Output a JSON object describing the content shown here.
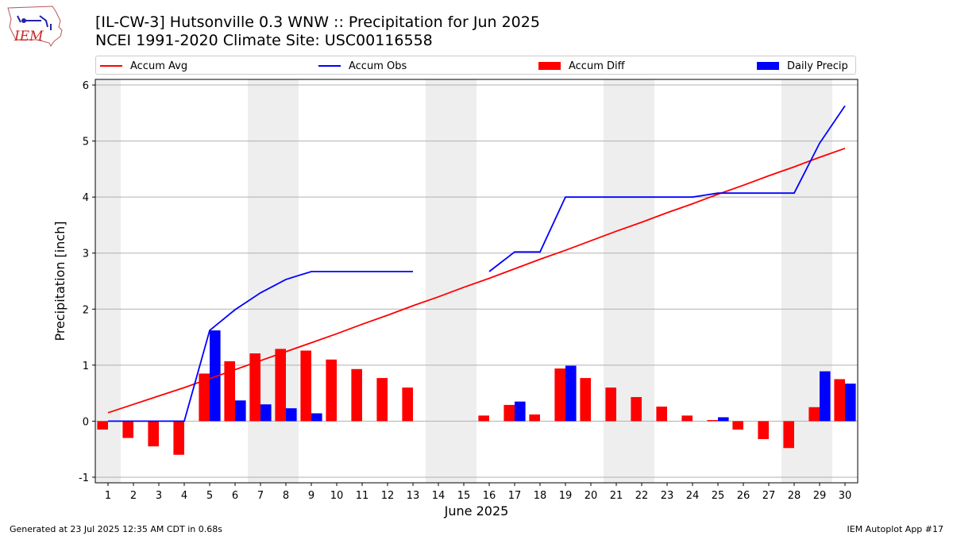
{
  "logo": {
    "text": "IEM"
  },
  "title_line1": "[IL-CW-3] Hutsonville 0.3 WNW :: Precipitation for Jun 2025",
  "title_line2": "NCEI 1991-2020 Climate Site: USC00116558",
  "footer_left": "Generated at 23 Jul 2025 12:35 AM CDT in 0.68s",
  "footer_right": "IEM Autoplot App #17",
  "colors": {
    "avg": "#ff0000",
    "obs": "#0000ff",
    "diff": "#ff0000",
    "daily": "#0000ff",
    "weekend": "#eeeeee",
    "grid": "#b0b0b0"
  },
  "chart_data": {
    "type": "bar",
    "xlabel": "June 2025",
    "ylabel": "Precipitation [inch]",
    "x": [
      1,
      2,
      3,
      4,
      5,
      6,
      7,
      8,
      9,
      10,
      11,
      12,
      13,
      14,
      15,
      16,
      17,
      18,
      19,
      20,
      21,
      22,
      23,
      24,
      25,
      26,
      27,
      28,
      29,
      30
    ],
    "xlim": [
      0.5,
      30.5
    ],
    "ylim": [
      -1.1,
      6.1
    ],
    "yticks": [
      -1,
      0,
      1,
      2,
      3,
      4,
      5,
      6
    ],
    "grid": true,
    "legend_position": "top",
    "weekend_days": [
      1,
      7,
      8,
      14,
      15,
      21,
      22,
      28,
      29
    ],
    "series": [
      {
        "name": "Accum Avg",
        "kind": "line",
        "values": [
          0.15,
          0.3,
          0.45,
          0.6,
          0.76,
          0.92,
          1.08,
          1.24,
          1.4,
          1.56,
          1.73,
          1.89,
          2.06,
          2.22,
          2.39,
          2.55,
          2.72,
          2.89,
          3.05,
          3.22,
          3.39,
          3.55,
          3.72,
          3.88,
          4.05,
          4.21,
          4.38,
          4.54,
          4.71,
          4.87
        ]
      },
      {
        "name": "Accum Obs",
        "kind": "line",
        "values": [
          0,
          0,
          0,
          0,
          1.62,
          1.99,
          2.29,
          2.53,
          2.67,
          2.67,
          2.67,
          2.67,
          2.67,
          null,
          null,
          2.67,
          3.02,
          3.02,
          4.0,
          4.0,
          4.0,
          4.0,
          4.0,
          4.0,
          4.07,
          4.07,
          4.07,
          4.07,
          4.96,
          5.63
        ]
      },
      {
        "name": "Accum Diff",
        "kind": "bar",
        "values": [
          -0.15,
          -0.3,
          -0.45,
          -0.6,
          0.85,
          1.07,
          1.21,
          1.29,
          1.26,
          1.1,
          0.93,
          0.77,
          0.6,
          null,
          null,
          0.1,
          0.29,
          0.12,
          0.94,
          0.77,
          0.6,
          0.43,
          0.26,
          0.1,
          0.02,
          -0.15,
          -0.32,
          -0.48,
          0.25,
          0.75
        ]
      },
      {
        "name": "Daily Precip",
        "kind": "bar",
        "values": [
          0,
          0,
          0,
          0,
          1.62,
          0.37,
          0.3,
          0.23,
          0.14,
          0,
          0,
          0,
          0,
          null,
          null,
          0,
          0.35,
          0,
          0.99,
          0,
          0,
          0,
          0,
          0,
          0.07,
          0,
          0,
          0,
          0.89,
          0.67
        ]
      }
    ]
  }
}
